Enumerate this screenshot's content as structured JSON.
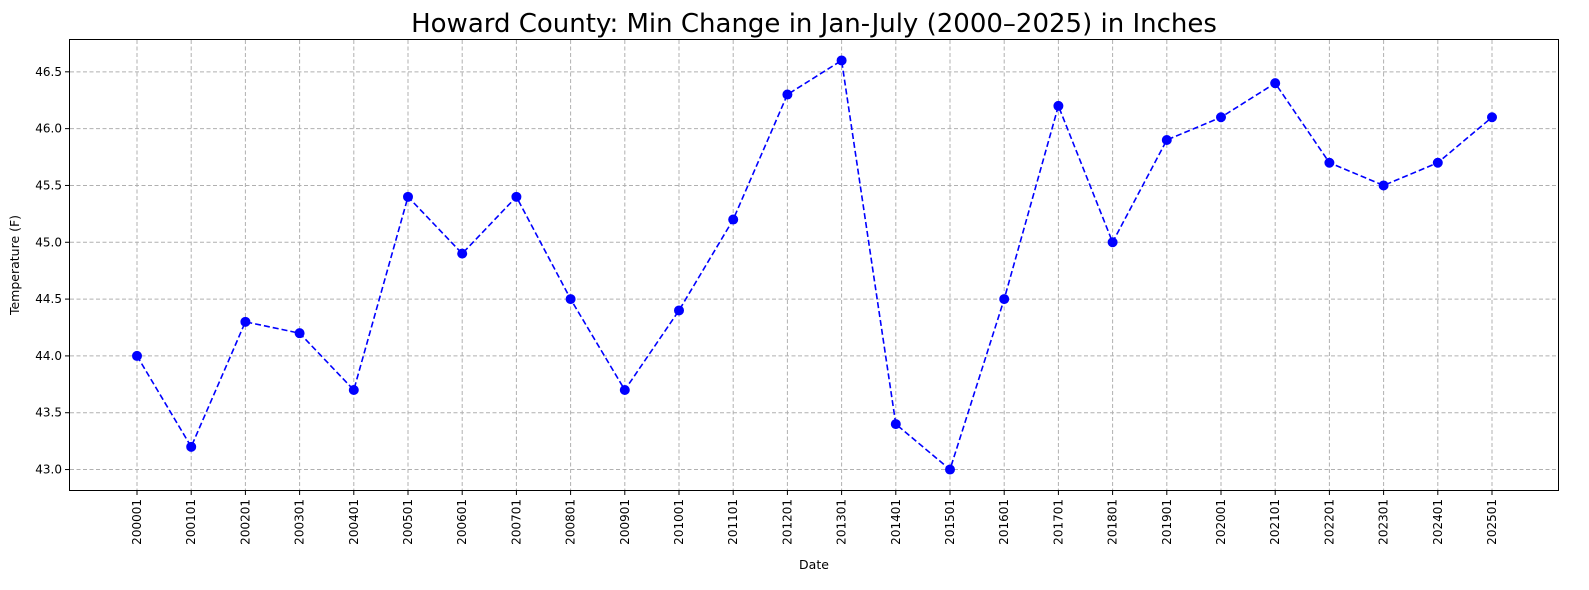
{
  "chart_data": {
    "type": "line",
    "title": "Howard County: Min Change in Jan-July (2000–2025) in Inches",
    "xlabel": "Date",
    "ylabel": "Temperature (F)",
    "categories": [
      "200001",
      "200101",
      "200201",
      "200301",
      "200401",
      "200501",
      "200601",
      "200701",
      "200801",
      "200901",
      "201001",
      "201101",
      "201201",
      "201301",
      "201401",
      "201501",
      "201601",
      "201701",
      "201801",
      "201901",
      "202001",
      "202101",
      "202201",
      "202301",
      "202401",
      "202501"
    ],
    "series": [
      {
        "values": [
          44.0,
          43.2,
          44.3,
          44.2,
          43.7,
          45.4,
          44.9,
          45.4,
          44.5,
          43.7,
          44.4,
          45.2,
          46.3,
          46.6,
          43.4,
          43.0,
          44.5,
          46.2,
          45.0,
          45.9,
          46.1,
          46.4,
          45.7,
          45.5,
          45.7,
          46.1
        ],
        "color": "#0000ff",
        "line_style": "dashed",
        "marker": "circle"
      }
    ],
    "yticks": [
      "43.0",
      "43.5",
      "44.0",
      "44.5",
      "45.0",
      "45.5",
      "46.0",
      "46.5"
    ],
    "ylim": [
      42.82,
      46.78
    ],
    "grid": true,
    "legend": "none"
  }
}
